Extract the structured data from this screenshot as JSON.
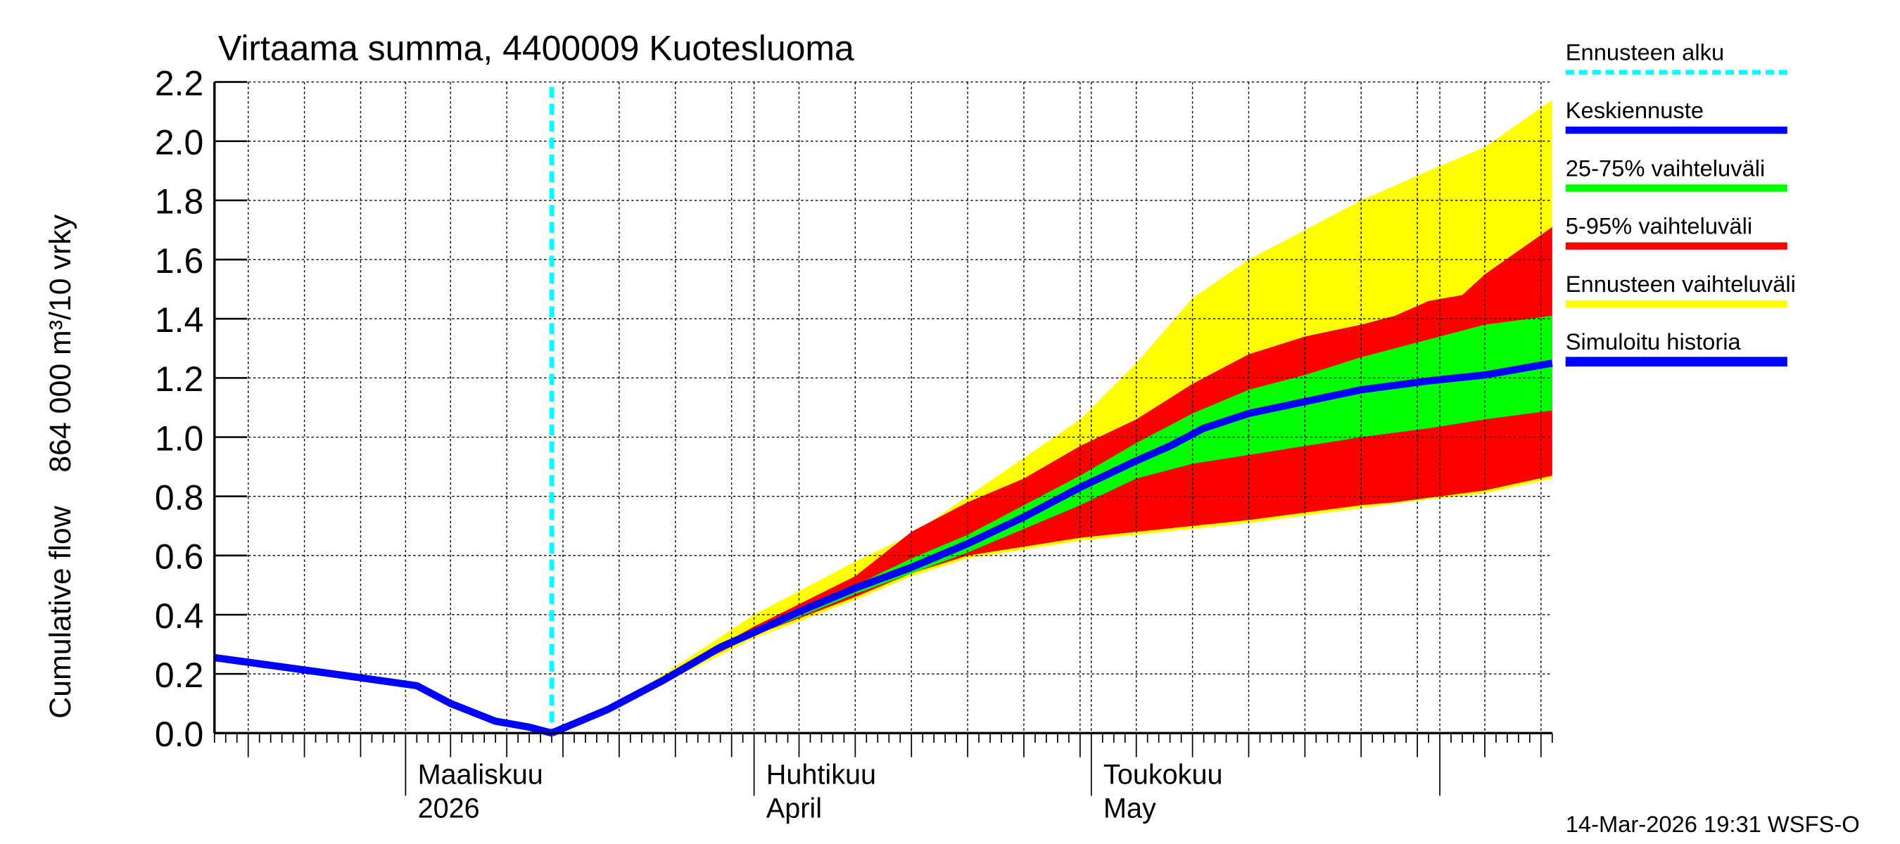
{
  "chart_data": {
    "type": "area",
    "title": "Virtaama summa, 4400009 Kuotesluoma",
    "ylabel": "Cumulative flow    864 000 m³/10 vrky",
    "ylim": [
      0,
      2.2
    ],
    "yticks": [
      "0.0",
      "0.2",
      "0.4",
      "0.6",
      "0.8",
      "1.0",
      "1.2",
      "1.4",
      "1.6",
      "1.8",
      "2.0",
      "2.2"
    ],
    "xlim": [
      "2026-02-12",
      "2026-06-11"
    ],
    "xtick_labels": [
      {
        "date": "2026-03-01",
        "line1": "Maaliskuu",
        "line2": "2026"
      },
      {
        "date": "2026-04-01",
        "line1": "Huhtikuu",
        "line2": "April"
      },
      {
        "date": "2026-05-01",
        "line1": "Toukokuu",
        "line2": "May"
      }
    ],
    "grid": true,
    "forecast_start": "2026-03-14",
    "timestamp": "14-Mar-2026 19:31 WSFS-O",
    "legend_position": "right",
    "legend": [
      {
        "label": "Ennusteen alku",
        "color": "#00ffff",
        "style": "dashed"
      },
      {
        "label": "Keskiennuste",
        "color": "#0000ff"
      },
      {
        "label": "25-75% vaihteluväli",
        "color": "#00ff00"
      },
      {
        "label": "5-95% vaihteluväli",
        "color": "#ff0000"
      },
      {
        "label": "Ennusteen vaihteluväli",
        "color": "#ffff00"
      },
      {
        "label": "Simuloitu historia",
        "color": "#0000ff"
      }
    ],
    "series": [
      {
        "name": "Ennusteen vaihteluväli",
        "kind": "band",
        "color": "#ffff00",
        "x": [
          "2026-03-20",
          "2026-03-24",
          "2026-04-01",
          "2026-04-10",
          "2026-04-15",
          "2026-04-20",
          "2026-04-25",
          "2026-04-30",
          "2026-05-05",
          "2026-05-10",
          "2026-05-15",
          "2026-05-20",
          "2026-05-25",
          "2026-05-31",
          "2026-06-05",
          "2026-06-11"
        ],
        "upper": [
          0.1,
          0.2,
          0.4,
          0.58,
          0.67,
          0.8,
          0.93,
          1.06,
          1.25,
          1.47,
          1.6,
          1.7,
          1.8,
          1.9,
          1.98,
          2.14
        ],
        "lower": [
          0.1,
          0.17,
          0.32,
          0.45,
          0.53,
          0.59,
          0.62,
          0.65,
          0.67,
          0.69,
          0.71,
          0.735,
          0.76,
          0.79,
          0.81,
          0.86
        ]
      },
      {
        "name": "5-95% vaihteluväli",
        "kind": "band",
        "color": "#ff0000",
        "x": [
          "2026-03-20",
          "2026-03-24",
          "2026-04-01",
          "2026-04-10",
          "2026-04-15",
          "2026-04-20",
          "2026-04-25",
          "2026-04-30",
          "2026-05-05",
          "2026-05-10",
          "2026-05-15",
          "2026-05-20",
          "2026-05-25",
          "2026-05-28",
          "2026-05-31",
          "2026-06-03",
          "2026-06-05",
          "2026-06-11"
        ],
        "upper": [
          0.1,
          0.19,
          0.36,
          0.53,
          0.68,
          0.78,
          0.86,
          0.97,
          1.06,
          1.18,
          1.28,
          1.34,
          1.38,
          1.41,
          1.46,
          1.48,
          1.55,
          1.71
        ],
        "lower": [
          0.1,
          0.18,
          0.33,
          0.46,
          0.54,
          0.6,
          0.63,
          0.66,
          0.68,
          0.7,
          0.72,
          0.745,
          0.77,
          0.78,
          0.795,
          0.81,
          0.82,
          0.87
        ]
      },
      {
        "name": "25-75% vaihteluväli",
        "kind": "band",
        "color": "#00ff00",
        "x": [
          "2026-04-01",
          "2026-04-10",
          "2026-04-15",
          "2026-04-20",
          "2026-04-25",
          "2026-04-30",
          "2026-05-05",
          "2026-05-10",
          "2026-05-15",
          "2026-05-20",
          "2026-05-25",
          "2026-05-31",
          "2026-06-05",
          "2026-06-11"
        ],
        "upper": [
          0.35,
          0.5,
          0.59,
          0.67,
          0.77,
          0.87,
          0.98,
          1.08,
          1.16,
          1.21,
          1.27,
          1.33,
          1.38,
          1.41
        ],
        "lower": [
          0.33,
          0.47,
          0.54,
          0.61,
          0.69,
          0.77,
          0.86,
          0.91,
          0.94,
          0.97,
          1.0,
          1.03,
          1.06,
          1.09
        ]
      },
      {
        "name": "Keskiennuste",
        "kind": "line",
        "color": "#0000ff",
        "x": [
          "2026-03-14",
          "2026-03-19",
          "2026-03-24",
          "2026-03-29",
          "2026-04-01",
          "2026-04-05",
          "2026-04-10",
          "2026-04-15",
          "2026-04-20",
          "2026-04-25",
          "2026-04-30",
          "2026-05-05",
          "2026-05-08",
          "2026-05-11",
          "2026-05-15",
          "2026-05-20",
          "2026-05-25",
          "2026-05-31",
          "2026-06-05",
          "2026-06-11"
        ],
        "y": [
          0.0,
          0.08,
          0.18,
          0.29,
          0.34,
          0.41,
          0.49,
          0.56,
          0.64,
          0.73,
          0.83,
          0.92,
          0.97,
          1.03,
          1.08,
          1.12,
          1.16,
          1.19,
          1.21,
          1.25
        ]
      },
      {
        "name": "Simuloitu historia",
        "kind": "line",
        "color": "#0000ff",
        "x": [
          "2026-02-12",
          "2026-02-25",
          "2026-03-02",
          "2026-03-05",
          "2026-03-09",
          "2026-03-12",
          "2026-03-14"
        ],
        "y": [
          0.255,
          0.187,
          0.16,
          0.1,
          0.04,
          0.02,
          0.0
        ]
      }
    ]
  }
}
